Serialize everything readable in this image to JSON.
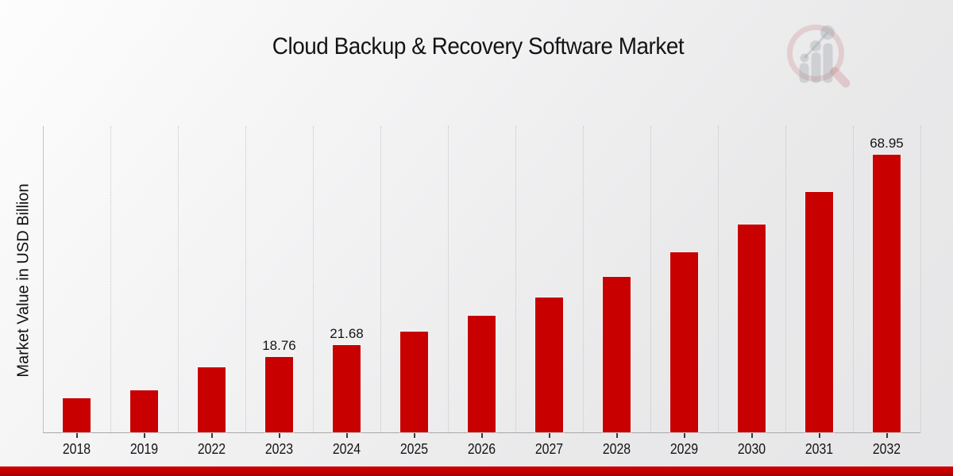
{
  "page": {
    "title": "Cloud Backup & Recovery Software Market",
    "footer_accent_color": "#c40000"
  },
  "chart_data": {
    "type": "bar",
    "title": "Cloud Backup & Recovery Software Market",
    "xlabel": "",
    "ylabel": "Market Value in USD Billion",
    "categories": [
      "2018",
      "2019",
      "2022",
      "2023",
      "2024",
      "2025",
      "2026",
      "2027",
      "2028",
      "2029",
      "2030",
      "2031",
      "2032"
    ],
    "values": [
      8.5,
      10.5,
      16.23,
      18.76,
      21.68,
      25.06,
      28.96,
      33.47,
      38.68,
      44.7,
      51.66,
      59.7,
      68.95
    ],
    "data_labels": {
      "2023": "18.76",
      "2024": "21.68",
      "2032": "68.95"
    },
    "bar_color": "#c80000",
    "ylim": [
      0,
      76.1
    ],
    "y_ticks_visible": false,
    "grid": "vertical-dotted",
    "legend": "none",
    "units": "USD Billion"
  }
}
